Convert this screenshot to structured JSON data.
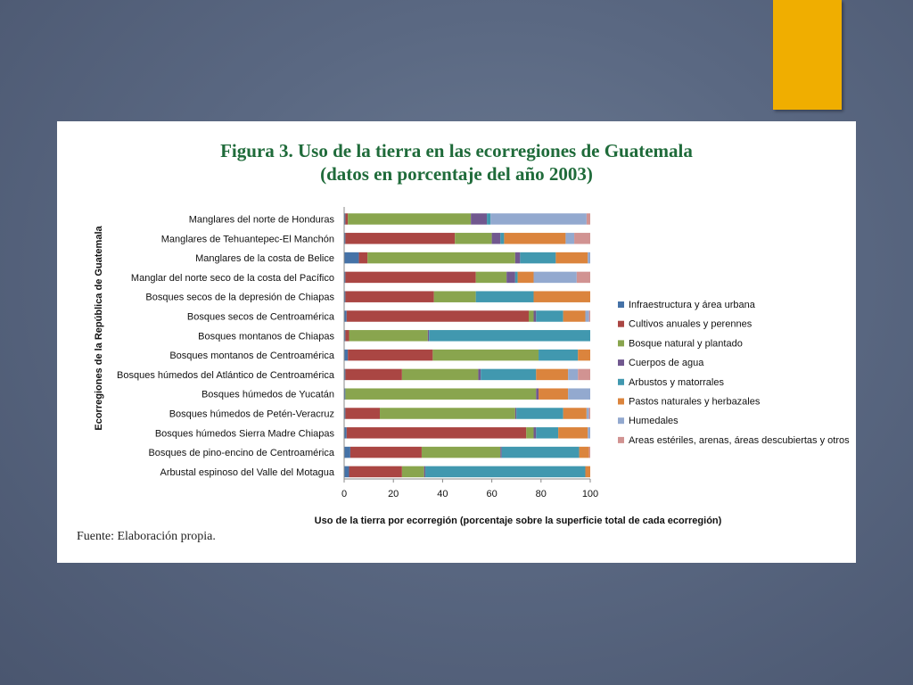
{
  "slide": {
    "accent_color": "#f0ae00"
  },
  "figure": {
    "title_line1": "Figura 3. Uso de la tierra en las ecorregiones de Guatemala",
    "title_line2": "(datos en porcentaje del año 2003)",
    "source": "Fuente: Elaboración propia."
  },
  "chart_data": {
    "type": "bar",
    "orientation": "horizontal",
    "stacked": true,
    "xlabel": "Uso de la tierra por ecorregión (porcentaje sobre la superficie total de cada ecorregión)",
    "ylabel": "Ecorregiones de la República de Guatemala",
    "xlim": [
      0,
      100
    ],
    "xticks": [
      0,
      20,
      40,
      60,
      80,
      100
    ],
    "legend_position": "right",
    "categories": [
      "Manglares del norte de Honduras",
      "Manglares de Tehuantepec-El Manchón",
      "Manglares de la costa de Belice",
      "Manglar del norte seco de la costa del Pacífico",
      "Bosques secos de la depresión de Chiapas",
      "Bosques secos de Centroamérica",
      "Bosques montanos de Chiapas",
      "Bosques montanos de Centroamérica",
      "Bosques húmedos del Atlántico de Centroamérica",
      "Bosques húmedos de Yucatán",
      "Bosques húmedos de Petén-Veracruz",
      "Bosques húmedos Sierra Madre Chiapas",
      "Bosques de pino-encino de Centroamérica",
      "Arbustal espinoso del Valle del Motagua"
    ],
    "series": [
      {
        "name": "Infraestructura y área urbana",
        "color": "#4572a7",
        "values": [
          0.5,
          0.5,
          6,
          0.5,
          0.5,
          1,
          0.5,
          1.5,
          0.5,
          0.5,
          0.5,
          1,
          2.5,
          2
        ]
      },
      {
        "name": "Cultivos anuales y perennes",
        "color": "#aa4643",
        "values": [
          1,
          44.5,
          3.5,
          53,
          36,
          74,
          1.5,
          34.5,
          23,
          0,
          14,
          73,
          29,
          21.5
        ]
      },
      {
        "name": "Bosque natural y plantado",
        "color": "#89a54e",
        "values": [
          50,
          15,
          60,
          12.5,
          17,
          2,
          32,
          43,
          31,
          77.5,
          55,
          3,
          32,
          9
        ]
      },
      {
        "name": "Cuerpos de agua",
        "color": "#71588f",
        "values": [
          6.5,
          3.5,
          2,
          3.5,
          0,
          1,
          0.5,
          0,
          1,
          1,
          0.5,
          1,
          0.5,
          0.5
        ]
      },
      {
        "name": "Arbustos y matorrales",
        "color": "#4198af",
        "values": [
          1.5,
          1.5,
          14.5,
          1,
          23.5,
          11,
          65.5,
          16,
          22.5,
          0,
          19,
          9,
          31.5,
          65
        ]
      },
      {
        "name": "Pastos naturales y herbazales",
        "color": "#db843d",
        "values": [
          0,
          25,
          13,
          6.5,
          23,
          9,
          0,
          5,
          13,
          12,
          9.5,
          12,
          4,
          2
        ]
      },
      {
        "name": "Humedales",
        "color": "#93a9cf",
        "values": [
          39,
          3.5,
          1,
          17.5,
          0,
          1.5,
          0,
          0,
          4,
          9,
          1,
          1,
          0,
          0
        ]
      },
      {
        "name": "Areas estériles, arenas, áreas descubiertas y otros",
        "color": "#d19392",
        "values": [
          1.5,
          6.5,
          0,
          5.5,
          0,
          0.5,
          0,
          0,
          5,
          0,
          0.5,
          0,
          0.5,
          0
        ]
      }
    ]
  }
}
